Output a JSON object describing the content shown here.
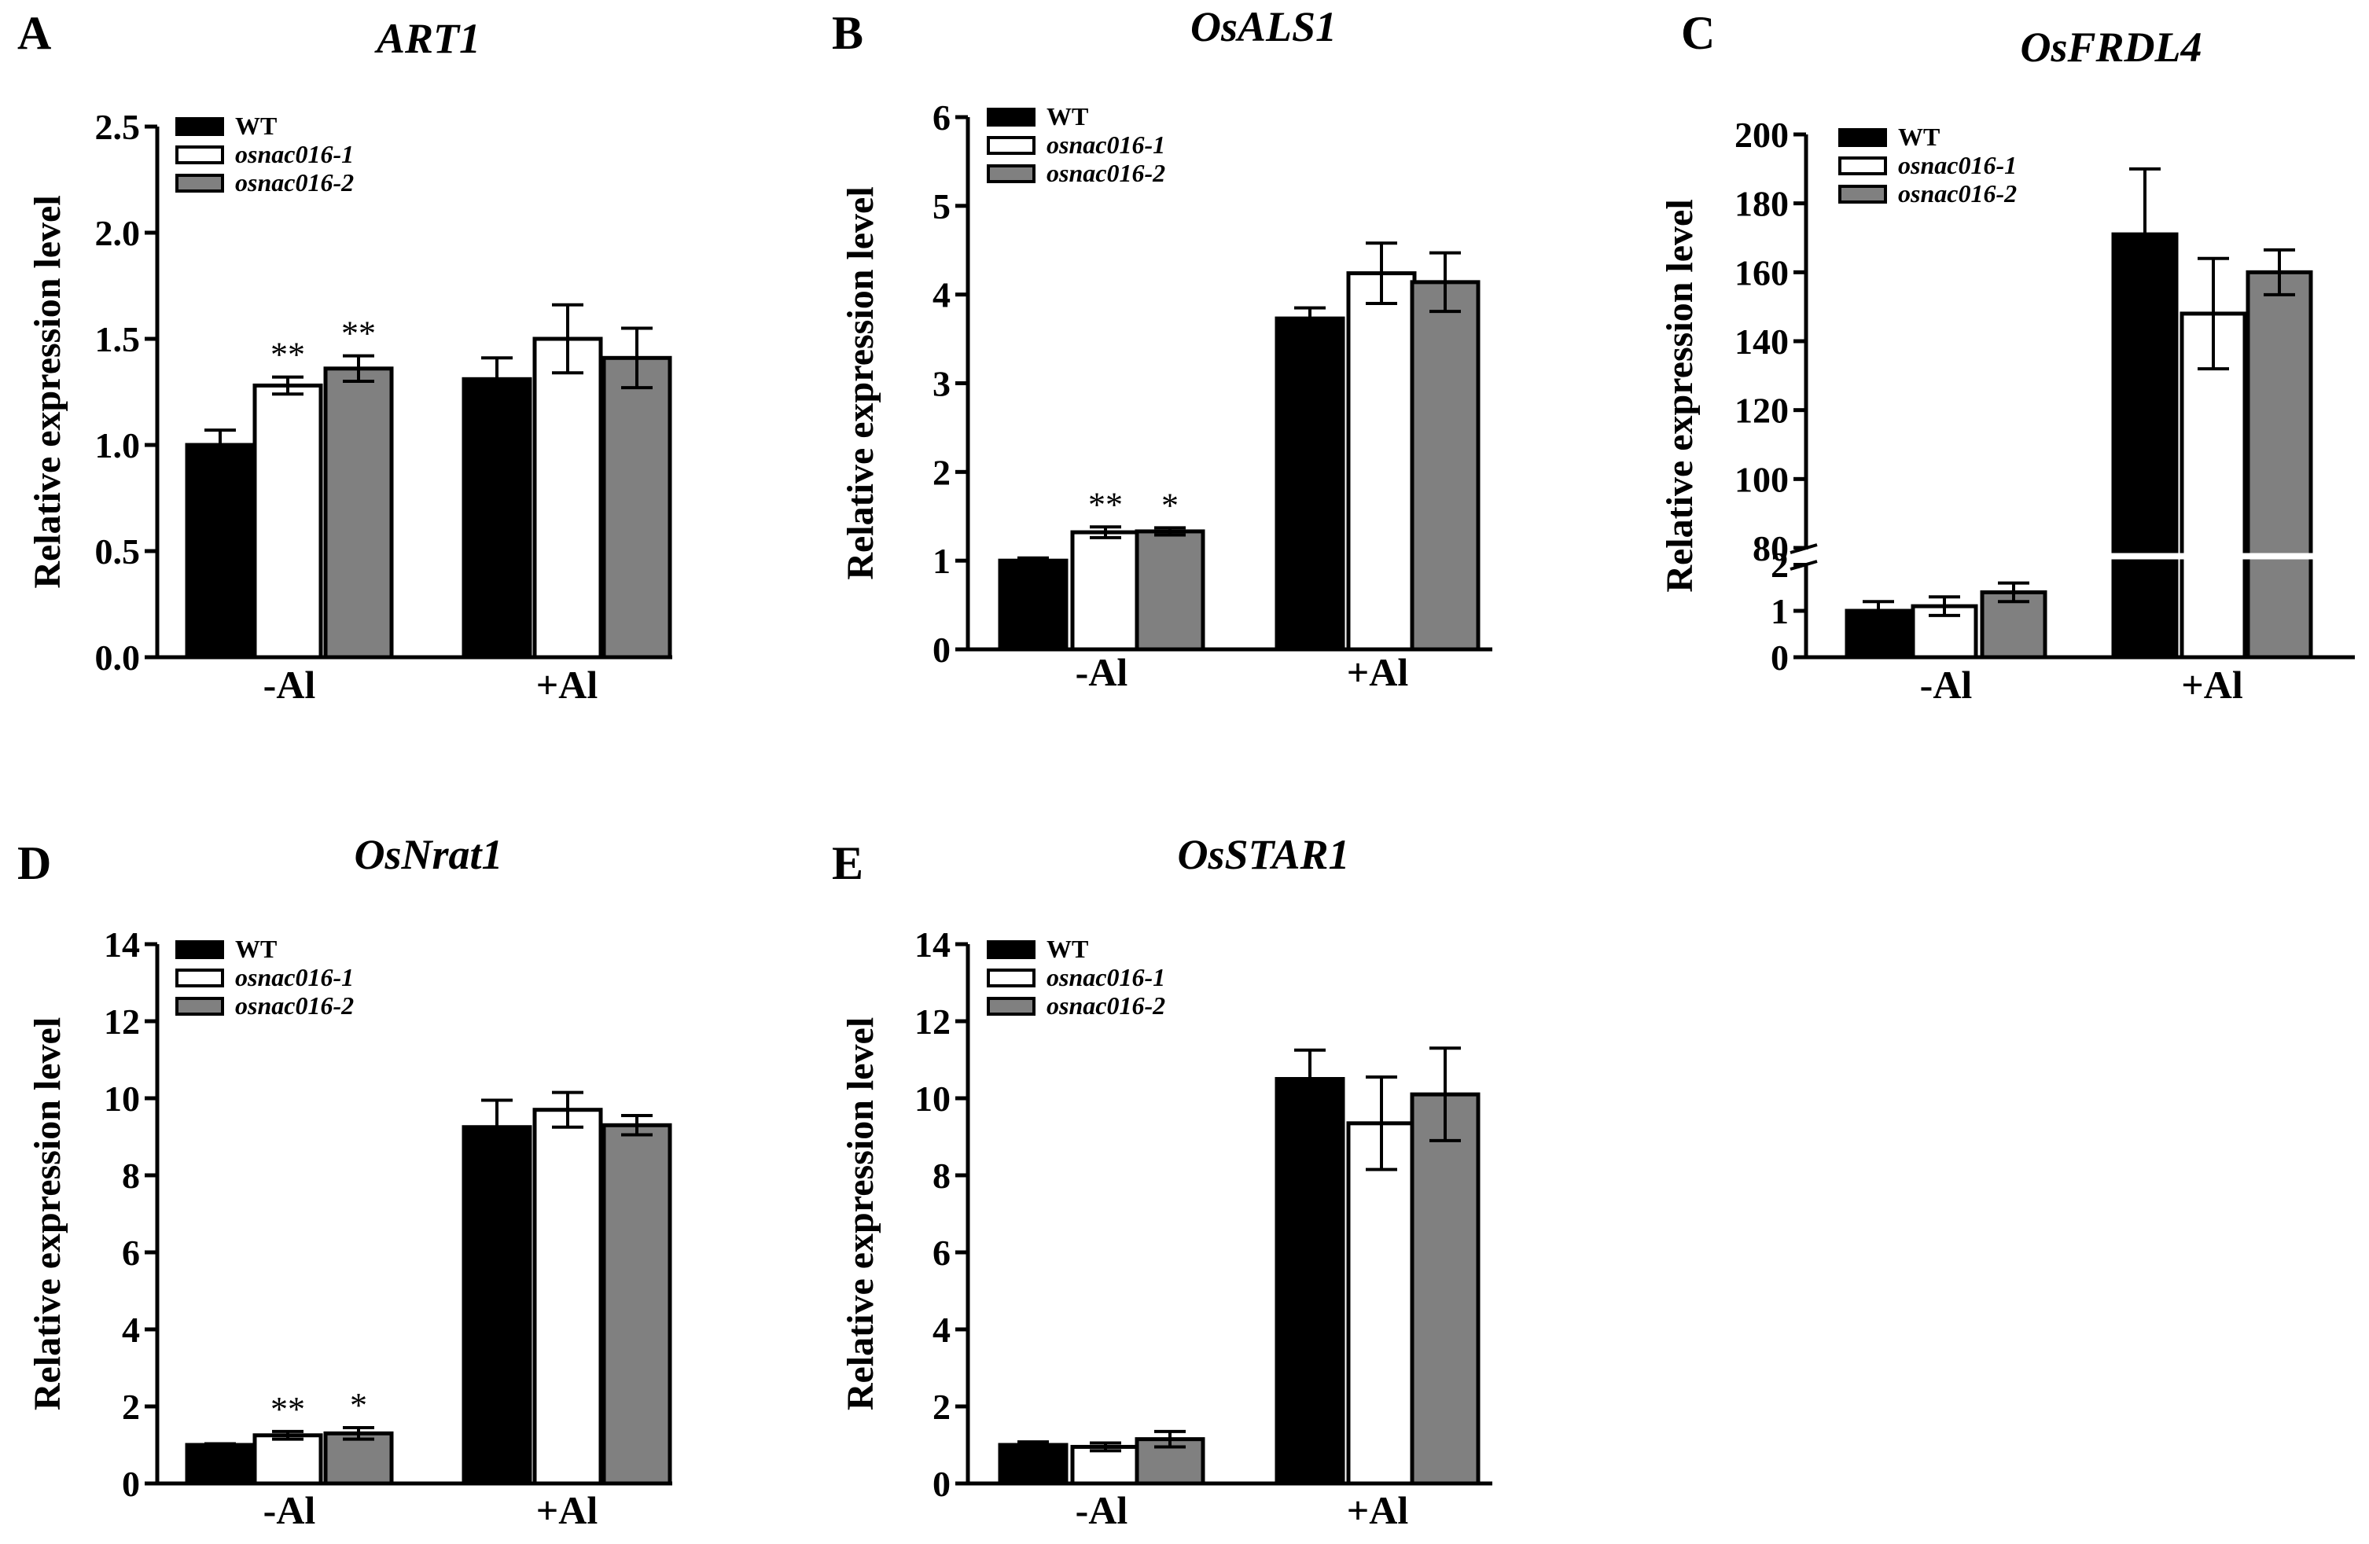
{
  "figure": {
    "colors": {
      "WT": "#000000",
      "osnac016-1": "#ffffff",
      "osnac016-2": "#808080",
      "axis": "#000000"
    },
    "legend": [
      "WT",
      "osnac016-1",
      "osnac016-2"
    ]
  },
  "chart_data": [
    {
      "panel": "A",
      "title": "ART1",
      "type": "bar",
      "ylabel": "Relative expression level",
      "categories": [
        "-Al",
        "+Al"
      ],
      "ylim": [
        0,
        2.5
      ],
      "yticks": [
        "0.0",
        "0.5",
        "1.0",
        "1.5",
        "2.0",
        "2.5"
      ],
      "series": [
        {
          "name": "WT",
          "values": [
            1.0,
            1.31
          ],
          "errors": [
            0.07,
            0.1
          ],
          "sig": [
            "",
            ""
          ]
        },
        {
          "name": "osnac016-1",
          "values": [
            1.28,
            1.5
          ],
          "errors": [
            0.04,
            0.16
          ],
          "sig": [
            "**",
            ""
          ]
        },
        {
          "name": "osnac016-2",
          "values": [
            1.36,
            1.41
          ],
          "errors": [
            0.06,
            0.14
          ],
          "sig": [
            "**",
            ""
          ]
        }
      ]
    },
    {
      "panel": "B",
      "title": "OsALS1",
      "type": "bar",
      "ylabel": "Relative expression level",
      "categories": [
        "-Al",
        "+Al"
      ],
      "ylim": [
        0,
        6
      ],
      "yticks": [
        "0",
        "1",
        "2",
        "3",
        "4",
        "5",
        "6"
      ],
      "series": [
        {
          "name": "WT",
          "values": [
            1.0,
            3.73
          ],
          "errors": [
            0.03,
            0.12
          ],
          "sig": [
            "",
            ""
          ]
        },
        {
          "name": "osnac016-1",
          "values": [
            1.32,
            4.24
          ],
          "errors": [
            0.06,
            0.34
          ],
          "sig": [
            "**",
            ""
          ]
        },
        {
          "name": "osnac016-2",
          "values": [
            1.33,
            4.14
          ],
          "errors": [
            0.04,
            0.33
          ],
          "sig": [
            "*",
            ""
          ]
        }
      ]
    },
    {
      "panel": "C",
      "title": "OsFRDL4",
      "type": "bar",
      "ylabel": "Relative expression level",
      "categories": [
        "-Al",
        "+Al"
      ],
      "ylim_lower": [
        0,
        2
      ],
      "ylim_upper": [
        80,
        200
      ],
      "yticks_lower": [
        "0",
        "1",
        "2"
      ],
      "yticks_upper": [
        "80",
        "100",
        "120",
        "140",
        "160",
        "180",
        "200"
      ],
      "series": [
        {
          "name": "WT",
          "values": [
            1.0,
            171
          ],
          "errors": [
            0.2,
            19
          ],
          "sig": [
            "",
            ""
          ]
        },
        {
          "name": "osnac016-1",
          "values": [
            1.1,
            148
          ],
          "errors": [
            0.2,
            16
          ],
          "sig": [
            "",
            ""
          ]
        },
        {
          "name": "osnac016-2",
          "values": [
            1.4,
            160
          ],
          "errors": [
            0.2,
            6.5
          ],
          "sig": [
            "",
            ""
          ]
        }
      ]
    },
    {
      "panel": "D",
      "title": "OsNrat1",
      "type": "bar",
      "ylabel": "Relative expression level",
      "categories": [
        "-Al",
        "+Al"
      ],
      "ylim": [
        0,
        14
      ],
      "yticks": [
        "0",
        "2",
        "4",
        "6",
        "8",
        "10",
        "12",
        "14"
      ],
      "series": [
        {
          "name": "WT",
          "values": [
            1.0,
            9.25
          ],
          "errors": [
            0.03,
            0.7
          ],
          "sig": [
            "",
            ""
          ]
        },
        {
          "name": "osnac016-1",
          "values": [
            1.25,
            9.7
          ],
          "errors": [
            0.1,
            0.45
          ],
          "sig": [
            "**",
            ""
          ]
        },
        {
          "name": "osnac016-2",
          "values": [
            1.3,
            9.3
          ],
          "errors": [
            0.15,
            0.25
          ],
          "sig": [
            "*",
            ""
          ]
        }
      ]
    },
    {
      "panel": "E",
      "title": "OsSTAR1",
      "type": "bar",
      "ylabel": "Relative expression level",
      "categories": [
        "-Al",
        "+Al"
      ],
      "ylim": [
        0,
        14
      ],
      "yticks": [
        "0",
        "2",
        "4",
        "6",
        "8",
        "10",
        "12",
        "14"
      ],
      "series": [
        {
          "name": "WT",
          "values": [
            1.0,
            10.5
          ],
          "errors": [
            0.08,
            0.75
          ],
          "sig": [
            "",
            ""
          ]
        },
        {
          "name": "osnac016-1",
          "values": [
            0.95,
            9.35
          ],
          "errors": [
            0.1,
            1.2
          ],
          "sig": [
            "",
            ""
          ]
        },
        {
          "name": "osnac016-2",
          "values": [
            1.15,
            10.1
          ],
          "errors": [
            0.2,
            1.2
          ],
          "sig": [
            "",
            ""
          ]
        }
      ]
    }
  ]
}
